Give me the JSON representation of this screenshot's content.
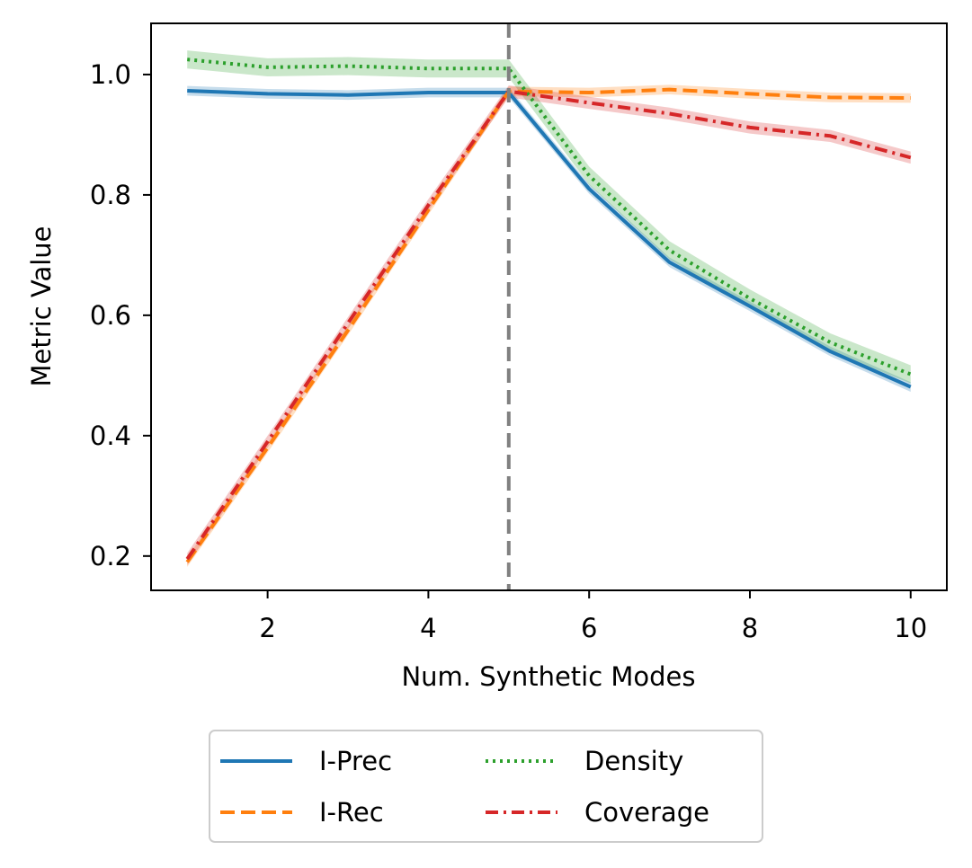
{
  "chart_data": {
    "type": "line",
    "title": "",
    "xlabel": "Num. Synthetic Modes",
    "ylabel": "Metric Value",
    "xlim": [
      0.55,
      10.45
    ],
    "ylim": [
      0.143,
      1.085
    ],
    "xticks": [
      2,
      4,
      6,
      8,
      10
    ],
    "xtick_labels": [
      "2",
      "4",
      "6",
      "8",
      "10"
    ],
    "yticks": [
      0.2,
      0.4,
      0.6,
      0.8,
      1.0
    ],
    "ytick_labels": [
      "0.2",
      "0.4",
      "0.6",
      "0.8",
      "1.0"
    ],
    "grid": false,
    "legend_position": "below-center",
    "vline": {
      "x": 5,
      "color": "#808080",
      "style": "dashed"
    },
    "x": [
      1,
      2,
      3,
      4,
      5,
      6,
      7,
      8,
      9,
      10
    ],
    "series": [
      {
        "name": "I-Prec",
        "color": "#1f77b4",
        "dash": "solid",
        "values": [
          0.973,
          0.968,
          0.966,
          0.97,
          0.97,
          0.81,
          0.688,
          0.615,
          0.54,
          0.481
        ],
        "band": 0.008
      },
      {
        "name": "I-Rec",
        "color": "#ff7f0e",
        "dash": "dashed",
        "values": [
          0.19,
          0.38,
          0.575,
          0.775,
          0.972,
          0.97,
          0.975,
          0.968,
          0.962,
          0.961
        ],
        "band": 0.008
      },
      {
        "name": "Density",
        "color": "#2ca02c",
        "dash": "dotted",
        "values": [
          1.025,
          1.012,
          1.014,
          1.01,
          1.01,
          0.832,
          0.708,
          0.628,
          0.555,
          0.502
        ],
        "band": 0.015
      },
      {
        "name": "Coverage",
        "color": "#d62728",
        "dash": "dashdot",
        "values": [
          0.195,
          0.39,
          0.587,
          0.783,
          0.972,
          0.953,
          0.935,
          0.912,
          0.898,
          0.862
        ],
        "band": 0.01
      }
    ]
  }
}
